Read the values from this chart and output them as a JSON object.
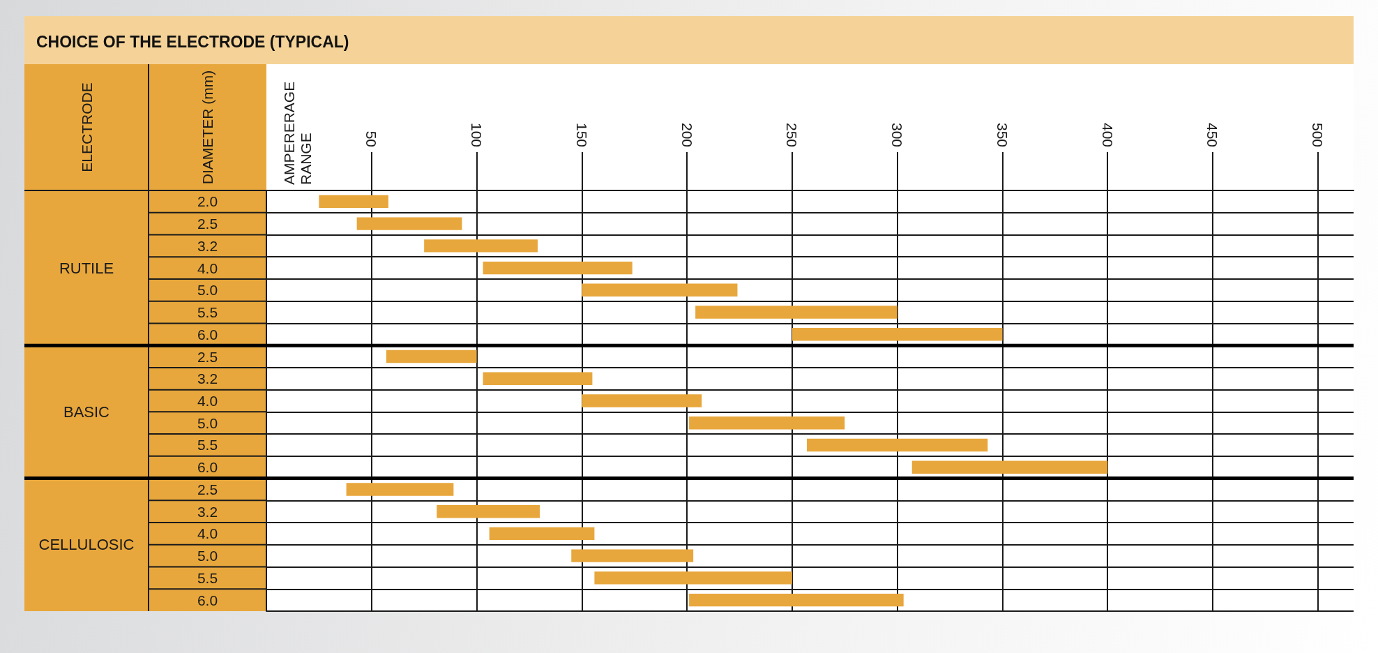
{
  "chart_data": {
    "type": "bar",
    "orientation": "horizontal",
    "title": "CHOICE OF THE ELECTRODE (TYPICAL)",
    "ylabel": "DIAMETER (mm)",
    "annotations": [
      "ELECTRODE",
      "RUTILE",
      "BASIC",
      "CELLULOSIC",
      "AMPERERAGE RANGE"
    ],
    "categories": [
      "2.0",
      "2.5",
      "3.2",
      "4.0",
      "5.0",
      "5.5",
      "6.0",
      "2.5",
      "3.2",
      "4.0",
      "5.0",
      "5.5",
      "6.0",
      "2.5",
      "3.2",
      "4.0",
      "5.0",
      "5.5",
      "6.0"
    ],
    "series": [
      {
        "color": "#e8a73c",
        "base": [
          25,
          43,
          75,
          103,
          150,
          204,
          250,
          null,
          null,
          null,
          null,
          null,
          null,
          null,
          null,
          null,
          null,
          null,
          null
        ],
        "values": [
          33,
          50,
          54,
          71,
          74,
          96,
          100,
          null,
          null,
          null,
          null,
          null,
          null,
          null,
          null,
          null,
          null,
          null,
          null
        ]
      },
      {
        "color": "#e8a73c",
        "base": [
          null,
          null,
          null,
          null,
          null,
          null,
          null,
          57,
          103,
          150,
          201,
          257,
          307,
          null,
          null,
          null,
          null,
          null,
          null
        ],
        "values": [
          null,
          null,
          null,
          null,
          null,
          null,
          null,
          43,
          52,
          57,
          74,
          86,
          93,
          null,
          null,
          null,
          null,
          null,
          null
        ]
      },
      {
        "color": "#e8a73c",
        "base": [
          null,
          null,
          null,
          null,
          null,
          null,
          null,
          null,
          null,
          null,
          null,
          null,
          null,
          38,
          81,
          106,
          145,
          156,
          201
        ],
        "values": [
          null,
          null,
          null,
          null,
          null,
          null,
          null,
          null,
          null,
          null,
          null,
          null,
          null,
          51,
          49,
          50,
          58,
          94,
          102
        ]
      }
    ],
    "xlim": [
      0,
      517
    ],
    "xticks": [
      50,
      100,
      150,
      200,
      250,
      300,
      350,
      400,
      450,
      500
    ],
    "grid": true
  }
}
